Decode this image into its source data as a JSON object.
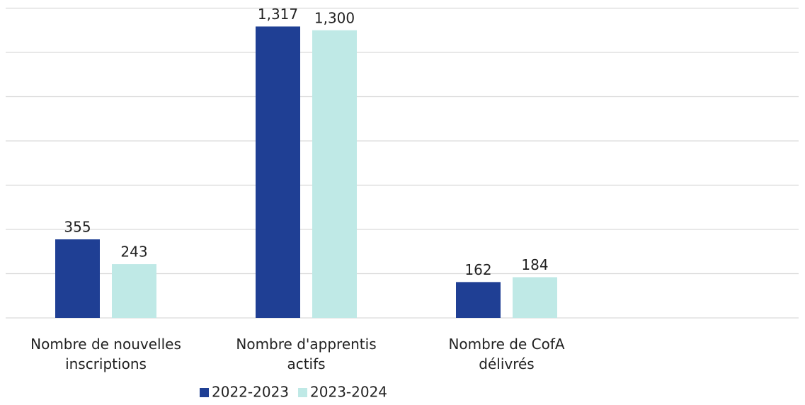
{
  "chart_data": {
    "type": "bar",
    "categories": [
      "Nombre de nouvelles inscriptions",
      "Nombre d'apprentis actifs",
      "Nombre de CofA délivrés"
    ],
    "series": [
      {
        "name": "2022-2023",
        "color": "#1f3f94",
        "values": [
          355,
          1317,
          162
        ],
        "value_labels": [
          "355",
          "1,317",
          "162"
        ]
      },
      {
        "name": "2023-2024",
        "color": "#bfe9e6",
        "values": [
          243,
          1300,
          184
        ],
        "value_labels": [
          "243",
          "1,300",
          "184"
        ]
      }
    ],
    "ylim": [
      0,
      1400
    ],
    "yticks": [
      0,
      200,
      400,
      600,
      800,
      1000,
      1200,
      1400
    ],
    "grid": true,
    "legend": "bottom"
  }
}
